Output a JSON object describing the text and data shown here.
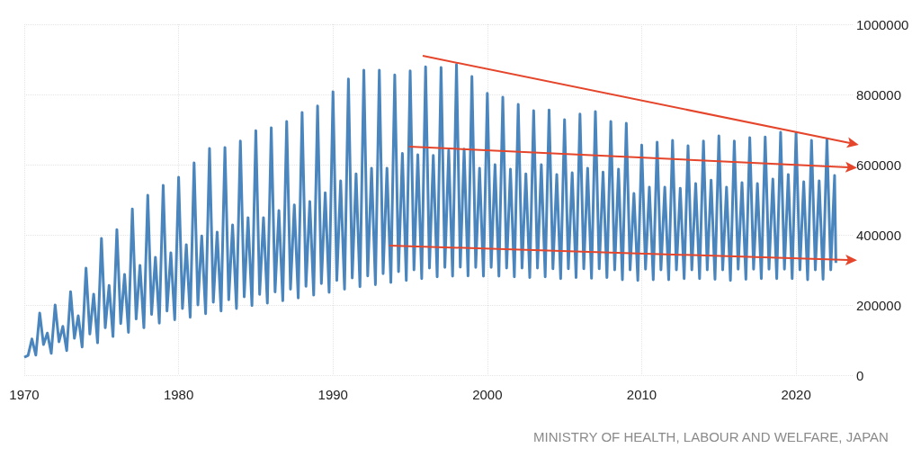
{
  "chart_data": {
    "type": "line",
    "annotations": [
      "MINISTRY OF HEALTH, LABOUR AND WELFARE, JAPAN"
    ],
    "xlim": [
      "1970-01",
      "2023-09"
    ],
    "xticks": [
      "1970",
      "1980",
      "1990",
      "2000",
      "2010",
      "2020"
    ],
    "ylim": [
      0,
      1000000
    ],
    "yticks": [
      0,
      200000,
      400000,
      600000,
      800000,
      1000000
    ],
    "grid": true,
    "marker": "none",
    "series": [
      {
        "color": "#4a86bd",
        "x": [
          "1970-01",
          "1970-04",
          "1970-07",
          "1970-10",
          "1971-01",
          "1971-04",
          "1971-07",
          "1971-10",
          "1972-01",
          "1972-04",
          "1972-07",
          "1972-10",
          "1973-01",
          "1973-04",
          "1973-07",
          "1973-10",
          "1974-01",
          "1974-04",
          "1974-07",
          "1974-10",
          "1975-01",
          "1975-04",
          "1975-07",
          "1975-10",
          "1976-01",
          "1976-04",
          "1976-07",
          "1976-10",
          "1977-01",
          "1977-04",
          "1977-07",
          "1977-10",
          "1978-01",
          "1978-04",
          "1978-07",
          "1978-10",
          "1979-01",
          "1979-04",
          "1979-07",
          "1979-10",
          "1980-01",
          "1980-04",
          "1980-07",
          "1980-10",
          "1981-01",
          "1981-04",
          "1981-07",
          "1981-10",
          "1982-01",
          "1982-04",
          "1982-07",
          "1982-10",
          "1983-01",
          "1983-04",
          "1983-07",
          "1983-10",
          "1984-01",
          "1984-04",
          "1984-07",
          "1984-10",
          "1985-01",
          "1985-04",
          "1985-07",
          "1985-10",
          "1986-01",
          "1986-04",
          "1986-07",
          "1986-10",
          "1987-01",
          "1987-04",
          "1987-07",
          "1987-10",
          "1988-01",
          "1988-04",
          "1988-07",
          "1988-10",
          "1989-01",
          "1989-04",
          "1989-07",
          "1989-10",
          "1990-01",
          "1990-04",
          "1990-07",
          "1990-10",
          "1991-01",
          "1991-04",
          "1991-07",
          "1991-10",
          "1992-01",
          "1992-04",
          "1992-07",
          "1992-10",
          "1993-01",
          "1993-04",
          "1993-07",
          "1993-10",
          "1994-01",
          "1994-04",
          "1994-07",
          "1994-10",
          "1995-01",
          "1995-04",
          "1995-07",
          "1995-10",
          "1996-01",
          "1996-04",
          "1996-07",
          "1996-10",
          "1997-01",
          "1997-04",
          "1997-07",
          "1997-10",
          "1998-01",
          "1998-04",
          "1998-07",
          "1998-10",
          "1999-01",
          "1999-04",
          "1999-07",
          "1999-10",
          "2000-01",
          "2000-04",
          "2000-07",
          "2000-10",
          "2001-01",
          "2001-04",
          "2001-07",
          "2001-10",
          "2002-01",
          "2002-04",
          "2002-07",
          "2002-10",
          "2003-01",
          "2003-04",
          "2003-07",
          "2003-10",
          "2004-01",
          "2004-04",
          "2004-07",
          "2004-10",
          "2005-01",
          "2005-04",
          "2005-07",
          "2005-10",
          "2006-01",
          "2006-04",
          "2006-07",
          "2006-10",
          "2007-01",
          "2007-04",
          "2007-07",
          "2007-10",
          "2008-01",
          "2008-04",
          "2008-07",
          "2008-10",
          "2009-01",
          "2009-04",
          "2009-07",
          "2009-10",
          "2010-01",
          "2010-04",
          "2010-07",
          "2010-10",
          "2011-01",
          "2011-04",
          "2011-07",
          "2011-10",
          "2012-01",
          "2012-04",
          "2012-07",
          "2012-10",
          "2013-01",
          "2013-04",
          "2013-07",
          "2013-10",
          "2014-01",
          "2014-04",
          "2014-07",
          "2014-10",
          "2015-01",
          "2015-04",
          "2015-07",
          "2015-10",
          "2016-01",
          "2016-04",
          "2016-07",
          "2016-10",
          "2017-01",
          "2017-04",
          "2017-07",
          "2017-10",
          "2018-01",
          "2018-04",
          "2018-07",
          "2018-10",
          "2019-01",
          "2019-04",
          "2019-07",
          "2019-10",
          "2020-01",
          "2020-04",
          "2020-07",
          "2020-10",
          "2021-01",
          "2021-04",
          "2021-07",
          "2021-10",
          "2022-01",
          "2022-04",
          "2022-07",
          "2022-08"
        ],
        "values": [
          51000,
          56000,
          103000,
          57000,
          177000,
          87000,
          120000,
          62000,
          200000,
          95000,
          139000,
          70000,
          238000,
          105000,
          169000,
          80000,
          305000,
          117000,
          231000,
          92000,
          390000,
          135000,
          256000,
          110000,
          415000,
          147000,
          287000,
          122000,
          474000,
          160000,
          313000,
          135000,
          513000,
          173000,
          336000,
          148000,
          541000,
          183000,
          349000,
          158000,
          564000,
          190000,
          372000,
          165000,
          605000,
          200000,
          397000,
          175000,
          646000,
          208000,
          408000,
          183000,
          649000,
          215000,
          428000,
          190000,
          667000,
          223000,
          449000,
          198000,
          697000,
          230000,
          449000,
          205000,
          705000,
          237000,
          469000,
          212000,
          723000,
          245000,
          485000,
          220000,
          749000,
          253000,
          495000,
          228000,
          767000,
          261000,
          520000,
          236000,
          808000,
          270000,
          554000,
          245000,
          844000,
          277000,
          574000,
          252000,
          869000,
          283000,
          590000,
          258000,
          869000,
          289000,
          590000,
          264000,
          856000,
          295000,
          632000,
          270000,
          867000,
          300000,
          628000,
          275000,
          879000,
          305000,
          626000,
          280000,
          877000,
          307000,
          641000,
          282000,
          885000,
          308000,
          644000,
          283000,
          851000,
          307000,
          590000,
          282000,
          803000,
          307000,
          600000,
          282000,
          792000,
          305000,
          587000,
          280000,
          772000,
          305000,
          574000,
          278000,
          754000,
          305000,
          600000,
          280000,
          756000,
          303000,
          572000,
          275000,
          728000,
          303000,
          577000,
          278000,
          744000,
          303000,
          590000,
          276000,
          751000,
          303000,
          579000,
          278000,
          723000,
          300000,
          587000,
          272000,
          718000,
          300000,
          518000,
          270000,
          656000,
          302000,
          536000,
          272000,
          664000,
          300000,
          536000,
          272000,
          669000,
          300000,
          533000,
          275000,
          654000,
          300000,
          546000,
          275000,
          667000,
          300000,
          556000,
          273000,
          682000,
          300000,
          536000,
          270000,
          667000,
          302000,
          549000,
          273000,
          677000,
          302000,
          546000,
          275000,
          679000,
          302000,
          559000,
          275000,
          692000,
          302000,
          572000,
          275000,
          690000,
          300000,
          551000,
          272000,
          669000,
          300000,
          554000,
          273000,
          672000,
          300000,
          569000,
          320000
        ]
      }
    ]
  }
}
